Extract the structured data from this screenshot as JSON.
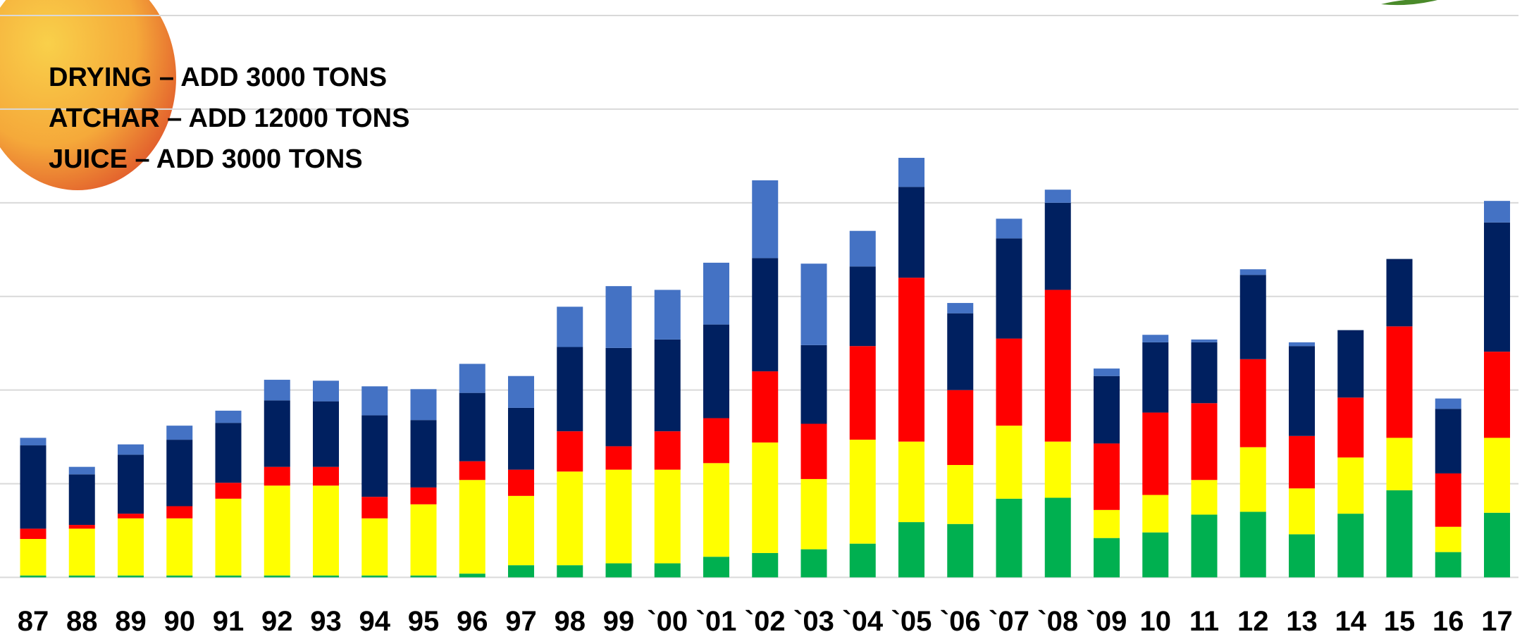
{
  "chart_data": {
    "type": "stacked_bar",
    "annotations": [
      "DRYING – ADD 3000 TONS",
      "ATCHAR – ADD 12000 TONS",
      "JUICE – ADD 3000 TONS"
    ],
    "categories": [
      "87",
      "88",
      "89",
      "90",
      "91",
      "92",
      "93",
      "94",
      "95",
      "96",
      "97",
      "98",
      "99",
      "`00",
      "`01",
      "`02",
      "`03",
      "`04",
      "`05",
      "`06",
      "`07",
      "`08",
      "`09",
      "10",
      "11",
      "12",
      "13",
      "14",
      "15",
      "16",
      "17"
    ],
    "series": [
      {
        "color": "#00b050",
        "values": [
          0.2,
          0.2,
          0.2,
          0.2,
          0.2,
          0.2,
          0.2,
          0.2,
          0.2,
          0.4,
          1.3,
          1.3,
          1.5,
          1.5,
          2.2,
          2.6,
          3.0,
          3.6,
          5.9,
          5.7,
          8.4,
          8.5,
          4.2,
          4.8,
          6.7,
          7.0,
          4.6,
          6.8,
          9.3,
          2.7,
          6.9
        ]
      },
      {
        "color": "#ffff00",
        "values": [
          3.9,
          5.0,
          6.1,
          6.1,
          8.2,
          9.6,
          9.6,
          6.1,
          7.6,
          10.0,
          7.4,
          10.0,
          10.0,
          10.0,
          10.0,
          11.8,
          7.5,
          11.1,
          8.6,
          6.3,
          7.8,
          6.0,
          3.0,
          4.0,
          3.7,
          6.9,
          4.9,
          6.0,
          5.6,
          2.7,
          8.0
        ]
      },
      {
        "color": "#ff0000",
        "values": [
          1.1,
          0.4,
          0.5,
          1.3,
          1.7,
          2.0,
          2.0,
          2.3,
          1.8,
          2.0,
          2.8,
          4.3,
          2.5,
          4.1,
          4.8,
          7.6,
          5.9,
          10.0,
          17.5,
          8.0,
          9.3,
          16.2,
          7.1,
          8.8,
          8.2,
          9.4,
          5.6,
          6.4,
          11.9,
          5.7,
          9.2
        ]
      },
      {
        "color": "#002060",
        "values": [
          8.9,
          5.4,
          6.3,
          7.1,
          6.4,
          7.1,
          7.0,
          8.7,
          7.2,
          7.3,
          6.6,
          9.0,
          10.5,
          9.8,
          10.0,
          12.1,
          8.4,
          8.5,
          9.7,
          8.2,
          10.7,
          9.3,
          7.2,
          7.5,
          6.5,
          9.0,
          9.6,
          7.2,
          7.2,
          6.9,
          13.8
        ]
      },
      {
        "color": "#4472c4",
        "values": [
          0.8,
          0.8,
          1.1,
          1.5,
          1.3,
          2.2,
          2.2,
          3.1,
          3.3,
          3.1,
          3.4,
          4.3,
          6.6,
          5.3,
          6.6,
          8.3,
          8.7,
          3.8,
          3.1,
          1.1,
          2.1,
          1.4,
          0.8,
          0.8,
          0.3,
          0.6,
          0.4,
          0,
          0,
          1.1,
          2.3
        ]
      }
    ],
    "ylim": [
      0,
      60
    ],
    "yticks": [
      0,
      10,
      20,
      30,
      40,
      50,
      60
    ],
    "grid": true
  }
}
